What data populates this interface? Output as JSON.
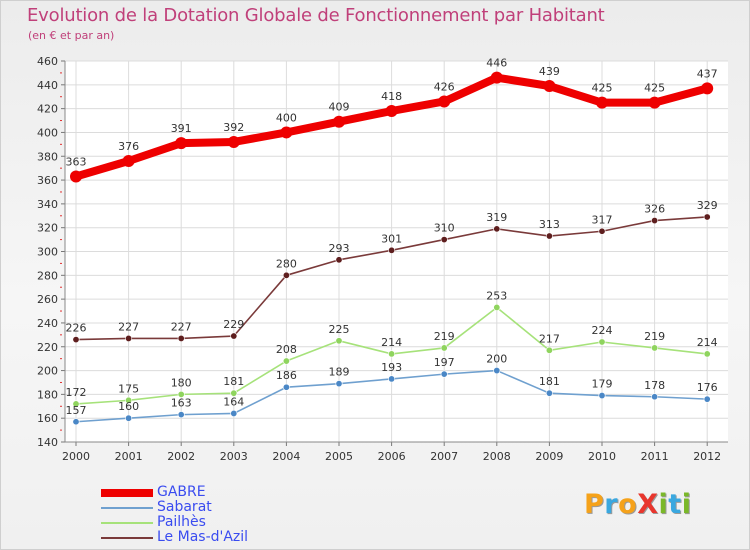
{
  "title": "Evolution de la Dotation Globale de Fonctionnement par Habitant",
  "subtitle": "(en € et par an)",
  "logo": {
    "text": "ProXiti",
    "letters": [
      {
        "ch": "P",
        "color": "#f5a21a"
      },
      {
        "ch": "r",
        "color": "#3aa8e0"
      },
      {
        "ch": "o",
        "color": "#f5a21a"
      },
      {
        "ch": "X",
        "color": "#e8362d"
      },
      {
        "ch": "i",
        "color": "#7ab829"
      },
      {
        "ch": "t",
        "color": "#3aa8e0"
      },
      {
        "ch": "i",
        "color": "#7ab829"
      }
    ]
  },
  "chart_data": {
    "type": "line",
    "x": [
      "2000",
      "2001",
      "2002",
      "2003",
      "2004",
      "2005",
      "2006",
      "2007",
      "2008",
      "2009",
      "2010",
      "2011",
      "2012"
    ],
    "ylim": [
      140,
      460
    ],
    "yticks": [
      140,
      160,
      180,
      200,
      220,
      240,
      260,
      280,
      300,
      320,
      340,
      360,
      380,
      400,
      420,
      440,
      460
    ],
    "grid": true,
    "legend_position": "bottom-left",
    "series": [
      {
        "name": "GABRE",
        "color": "#ee0000",
        "marker": "#ee0000",
        "emphasis": true,
        "values": [
          363,
          376,
          391,
          392,
          400,
          409,
          418,
          426,
          446,
          439,
          425,
          425,
          437
        ]
      },
      {
        "name": "Sabarat",
        "color": "#6fa0cf",
        "marker": "#4a87c6",
        "emphasis": false,
        "values": [
          157,
          160,
          163,
          164,
          186,
          189,
          193,
          197,
          200,
          181,
          179,
          178,
          176
        ]
      },
      {
        "name": "Pailhès",
        "color": "#a6e27a",
        "marker": "#8fd45e",
        "emphasis": false,
        "values": [
          172,
          175,
          180,
          181,
          208,
          225,
          214,
          219,
          253,
          217,
          224,
          219,
          214
        ]
      },
      {
        "name": "Le Mas-d'Azil",
        "color": "#7a3a3a",
        "marker": "#5e1e1e",
        "emphasis": false,
        "values": [
          226,
          227,
          227,
          229,
          280,
          293,
          301,
          310,
          319,
          313,
          317,
          326,
          329
        ]
      }
    ]
  }
}
